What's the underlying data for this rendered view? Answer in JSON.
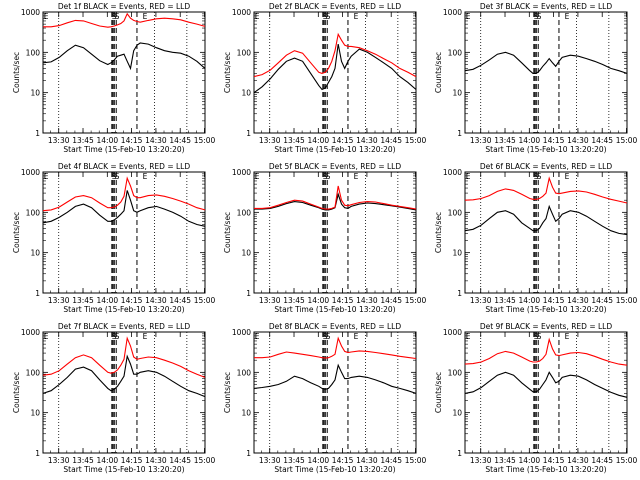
{
  "colors": {
    "events": "#000000",
    "lld": "#ff0000",
    "axis": "#000000",
    "background": "#ffffff"
  },
  "chart_data": {
    "type": "line",
    "layout": "3x3 grid",
    "y_scale": "log",
    "ylim": [
      1,
      1000
    ],
    "y_ticks": [
      "1",
      "10",
      "100",
      "1000"
    ],
    "ylabel": "Counts/sec",
    "xlabel": "Start Time (15-Feb-10 13:20:20)",
    "x_unit": "minutes since 13:20:20",
    "xlim": [
      0,
      100
    ],
    "x_ticks": [
      {
        "label": "13:30",
        "t": 9.7
      },
      {
        "label": "13:45",
        "t": 24.7
      },
      {
        "label": "14:00",
        "t": 39.7
      },
      {
        "label": "14:15",
        "t": 54.7
      },
      {
        "label": "14:30",
        "t": 69.7
      },
      {
        "label": "14:45",
        "t": 84.7
      },
      {
        "label": "15:00",
        "t": 99.7
      }
    ],
    "vlines_dotted": [
      9.7,
      68.8,
      88.8
    ],
    "vlines_dashed": [
      42.5,
      43.2,
      44.0,
      45.2,
      58.0
    ],
    "top_annotations": [
      {
        "text": "E",
        "t": 0.5
      },
      {
        "text": "S",
        "t": 42.4
      },
      {
        "text": "S",
        "t": 44.2
      },
      {
        "text": "E",
        "t": 61.5
      }
    ],
    "legend_note": "BLACK = Events, RED = LLD",
    "series_x": [
      0,
      5,
      10,
      15,
      20,
      25,
      30,
      35,
      40,
      42,
      44,
      46,
      48,
      50,
      52,
      54,
      56,
      58,
      60,
      65,
      70,
      75,
      80,
      85,
      90,
      95,
      100
    ],
    "panels": [
      {
        "title": "Det 1f  BLACK = Events, RED = LLD",
        "series": [
          {
            "name": "Events",
            "color": "#000000",
            "values": [
              55,
              58,
              75,
              110,
              150,
              130,
              90,
              62,
              50,
              55,
              65,
              80,
              85,
              90,
              60,
              40,
              110,
              150,
              170,
              160,
              130,
              110,
              100,
              95,
              80,
              60,
              40
            ]
          },
          {
            "name": "LLD",
            "color": "#ff0000",
            "values": [
              430,
              430,
              460,
              540,
              620,
              600,
              520,
              450,
              420,
              430,
              450,
              480,
              520,
              600,
              900,
              700,
              620,
              580,
              560,
              620,
              680,
              700,
              680,
              640,
              560,
              500,
              440
            ]
          }
        ]
      },
      {
        "title": "Det 2f  BLACK = Events, RED = LLD",
        "series": [
          {
            "name": "Events",
            "color": "#000000",
            "values": [
              10,
              14,
              22,
              38,
              60,
              72,
              60,
              30,
              15,
              12,
              13,
              18,
              25,
              40,
              160,
              60,
              40,
              60,
              80,
              120,
              100,
              75,
              55,
              40,
              25,
              18,
              12
            ]
          },
          {
            "name": "LLD",
            "color": "#ff0000",
            "values": [
              25,
              28,
              36,
              55,
              85,
              110,
              95,
              55,
              32,
              30,
              32,
              40,
              60,
              110,
              280,
              200,
              150,
              140,
              140,
              130,
              110,
              90,
              70,
              55,
              40,
              32,
              25
            ]
          }
        ]
      },
      {
        "title": "Det 3f  BLACK = Events, RED = LLD",
        "series": [
          {
            "name": "Events",
            "color": "#000000",
            "values": [
              35,
              38,
              48,
              65,
              90,
              100,
              85,
              55,
              35,
              30,
              30,
              35,
              45,
              55,
              70,
              55,
              45,
              60,
              75,
              85,
              80,
              70,
              60,
              50,
              40,
              35,
              30
            ]
          }
        ]
      },
      {
        "title": "Det 4f  BLACK = Events, RED = LLD",
        "series": [
          {
            "name": "Events",
            "color": "#000000",
            "values": [
              55,
              60,
              75,
              100,
              140,
              160,
              130,
              85,
              60,
              60,
              65,
              75,
              90,
              110,
              350,
              200,
              110,
              100,
              110,
              130,
              140,
              120,
              100,
              80,
              60,
              50,
              45
            ]
          },
          {
            "name": "LLD",
            "color": "#ff0000",
            "values": [
              110,
              115,
              135,
              180,
              240,
              260,
              230,
              170,
              130,
              130,
              135,
              150,
              180,
              250,
              700,
              450,
              260,
              230,
              230,
              260,
              270,
              250,
              220,
              190,
              160,
              130,
              115
            ]
          }
        ]
      },
      {
        "title": "Det 5f  BLACK = Events, RED = LLD",
        "series": [
          {
            "name": "Events",
            "color": "#000000",
            "values": [
              120,
              120,
              125,
              140,
              165,
              185,
              175,
              150,
              130,
              120,
              115,
              115,
              120,
              130,
              280,
              160,
              130,
              125,
              140,
              160,
              170,
              165,
              155,
              145,
              135,
              125,
              115
            ]
          },
          {
            "name": "LLD",
            "color": "#ff0000",
            "values": [
              125,
              125,
              130,
              150,
              175,
              200,
              190,
              160,
              135,
              125,
              120,
              120,
              125,
              135,
              450,
              200,
              150,
              145,
              155,
              175,
              185,
              180,
              165,
              150,
              140,
              130,
              120
            ]
          }
        ]
      },
      {
        "title": "Det 6f  BLACK = Events, RED = LLD",
        "series": [
          {
            "name": "Events",
            "color": "#000000",
            "values": [
              35,
              38,
              48,
              70,
              100,
              110,
              90,
              55,
              40,
              35,
              35,
              40,
              55,
              70,
              140,
              90,
              60,
              70,
              90,
              110,
              100,
              80,
              60,
              45,
              35,
              30,
              28
            ]
          },
          {
            "name": "LLD",
            "color": "#ff0000",
            "values": [
              200,
              205,
              220,
              260,
              330,
              380,
              350,
              280,
              220,
              210,
              210,
              220,
              250,
              300,
              700,
              420,
              300,
              290,
              300,
              330,
              340,
              320,
              280,
              240,
              210,
              190,
              170
            ]
          }
        ]
      },
      {
        "title": "Det 7f  BLACK = Events, RED = LLD",
        "series": [
          {
            "name": "Events",
            "color": "#000000",
            "values": [
              30,
              35,
              50,
              75,
              120,
              135,
              110,
              65,
              40,
              35,
              38,
              45,
              60,
              80,
              250,
              160,
              90,
              90,
              100,
              110,
              100,
              80,
              60,
              45,
              35,
              30,
              25
            ]
          },
          {
            "name": "LLD",
            "color": "#ff0000",
            "values": [
              85,
              90,
              110,
              160,
              230,
              270,
              230,
              150,
              100,
              95,
              100,
              115,
              150,
              210,
              700,
              450,
              240,
              210,
              220,
              240,
              230,
              200,
              170,
              140,
              110,
              90,
              75
            ]
          }
        ]
      },
      {
        "title": "Det 8f  BLACK = Events, RED = LLD",
        "series": [
          {
            "name": "Events",
            "color": "#000000",
            "values": [
              40,
              42,
              45,
              50,
              60,
              80,
              70,
              55,
              45,
              40,
              38,
              40,
              50,
              65,
              150,
              100,
              70,
              70,
              75,
              80,
              75,
              65,
              55,
              45,
              40,
              35,
              30
            ]
          },
          {
            "name": "LLD",
            "color": "#ff0000",
            "values": [
              230,
              230,
              240,
              280,
              320,
              300,
              280,
              260,
              240,
              230,
              225,
              230,
              250,
              280,
              700,
              450,
              330,
              310,
              320,
              340,
              330,
              310,
              290,
              270,
              250,
              235,
              220
            ]
          }
        ]
      },
      {
        "title": "Det 9f  BLACK = Events, RED = LLD",
        "series": [
          {
            "name": "Events",
            "color": "#000000",
            "values": [
              30,
              33,
              42,
              60,
              85,
              100,
              85,
              55,
              38,
              33,
              33,
              38,
              50,
              65,
              100,
              75,
              55,
              60,
              75,
              85,
              80,
              65,
              50,
              40,
              32,
              27,
              24
            ]
          },
          {
            "name": "LLD",
            "color": "#ff0000",
            "values": [
              160,
              165,
              180,
              220,
              290,
              330,
              300,
              240,
              190,
              180,
              180,
              190,
              220,
              280,
              650,
              380,
              270,
              260,
              270,
              300,
              310,
              290,
              250,
              210,
              180,
              160,
              150
            ]
          }
        ]
      }
    ]
  }
}
